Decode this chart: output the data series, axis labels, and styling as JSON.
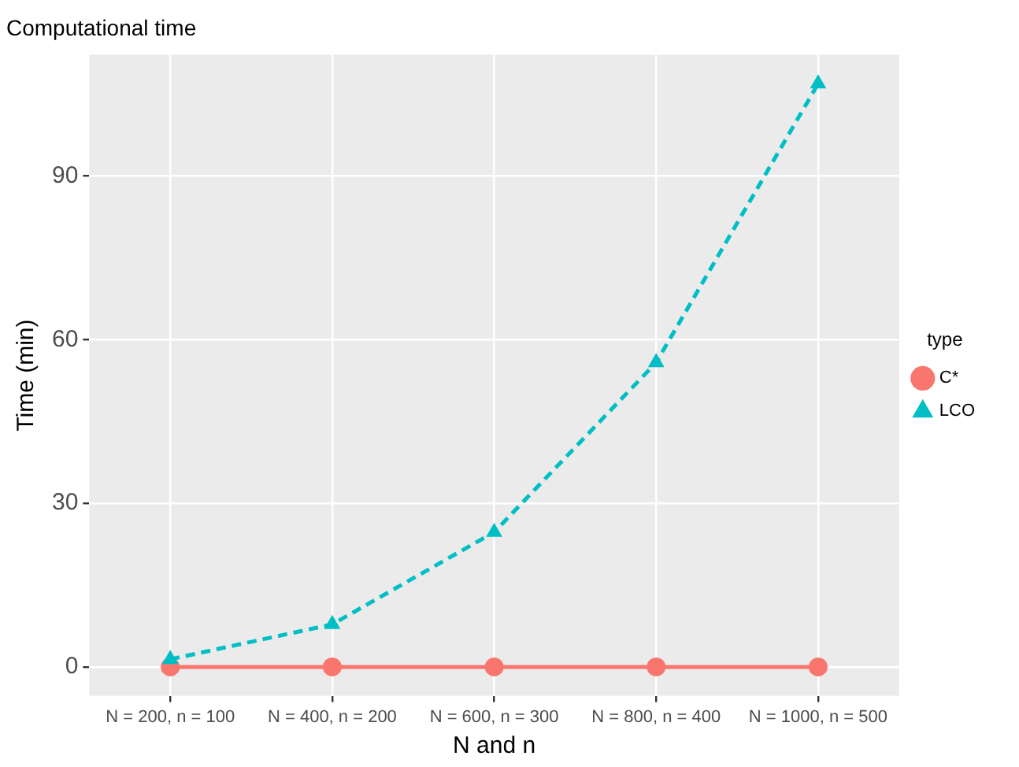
{
  "chart_data": {
    "type": "line",
    "title": "Computational time",
    "xlabel": "N and n",
    "ylabel": "Time (min)",
    "legend_title": "type",
    "categories": [
      "N = 200, n = 100",
      "N = 400, n = 200",
      "N = 600, n = 300",
      "N = 800, n = 400",
      "N = 1000, n = 500"
    ],
    "series": [
      {
        "name": "C*",
        "color": "#f8766d",
        "values": [
          0,
          0,
          0,
          0,
          0
        ],
        "marker": "circle",
        "line_style": "solid"
      },
      {
        "name": "LCO",
        "color": "#00bfc4",
        "values": [
          1.4,
          7.8,
          24.7,
          55.8,
          106.9
        ],
        "marker": "triangle",
        "line_style": "dashed"
      }
    ],
    "ylim": [
      -5.3,
      112.2
    ],
    "yticks": [
      0,
      30,
      60,
      90
    ],
    "grid": true,
    "legend": "right"
  }
}
